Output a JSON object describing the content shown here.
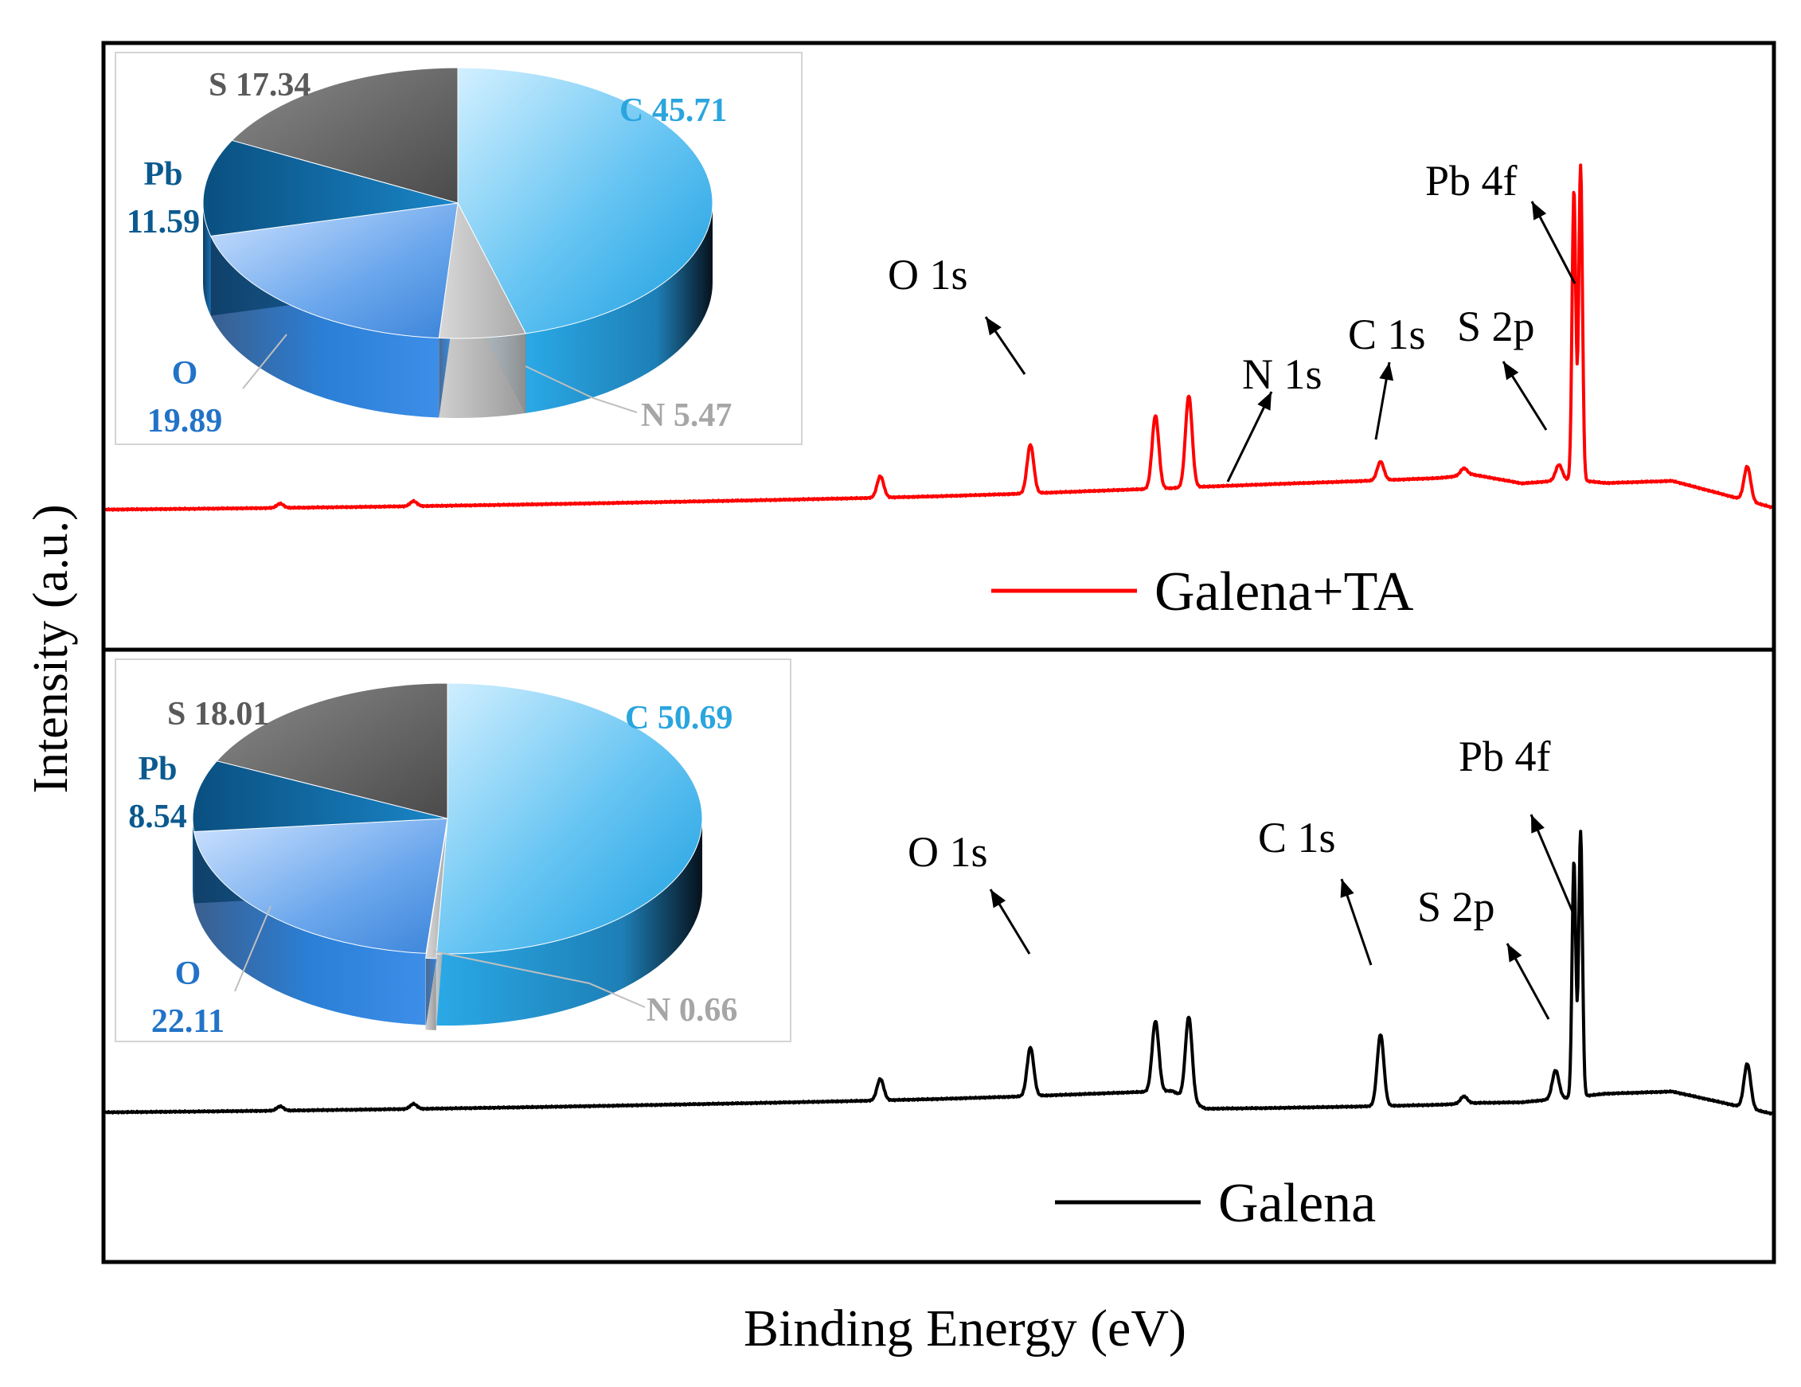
{
  "chart_data": [
    {
      "type": "line",
      "title": "",
      "xlabel": "Binding Energy (eV)",
      "ylabel": "Intensity (a.u.)",
      "x_direction": "binding energy decreasing left to right",
      "series": [
        {
          "name": "Galena+TA",
          "color": "#ff0000",
          "points": [
            [
              0,
              0.0
            ],
            [
              5,
              0.01
            ],
            [
              10,
              0.022
            ],
            [
              15,
              0.036
            ],
            [
              20,
              0.052
            ],
            [
              25,
              0.07
            ],
            [
              30,
              0.09
            ],
            [
              35,
              0.112
            ],
            [
              40,
              0.134
            ],
            [
              45,
              0.158
            ],
            [
              50,
              0.186
            ],
            [
              55,
              0.222
            ],
            [
              60,
              0.266
            ],
            [
              64,
              0.3
            ],
            [
              66,
              0.32
            ],
            [
              70,
              0.355
            ],
            [
              75,
              0.395
            ],
            [
              80,
              0.44
            ],
            [
              82,
              0.49
            ],
            [
              85,
              0.365
            ],
            [
              88,
              0.42
            ],
            [
              90,
              0.37
            ],
            [
              94,
              0.4
            ],
            [
              100,
              0.03
            ]
          ],
          "peaks": [
            {
              "x": 10.5,
              "height": 0.06
            },
            {
              "x": 18.5,
              "height": 0.07
            },
            {
              "x": 46.5,
              "height": 0.3
            },
            {
              "x": 55.5,
              "height": 0.68
            },
            {
              "x": 63.0,
              "height": 1.02
            },
            {
              "x": 65.0,
              "height": 1.28
            },
            {
              "x": 76.5,
              "height": 0.26
            },
            {
              "x": 81.5,
              "height": 0.1
            },
            {
              "x": 87.2,
              "height": 0.22
            },
            {
              "x": 88.1,
              "height": 4.05
            },
            {
              "x": 88.5,
              "height": 4.4
            },
            {
              "x": 98.5,
              "height": 0.48
            }
          ]
        }
      ],
      "annotations": [
        "O 1s",
        "N 1s",
        "C 1s",
        "S 2p",
        "Pb 4f"
      ],
      "legend": {
        "label": "Galena+TA",
        "placement": "bottom-right"
      },
      "inset_pie": {
        "slices": [
          {
            "label": "C",
            "value": 45.71,
            "color": "#2eaeea"
          },
          {
            "label": "N",
            "value": 5.47,
            "color": "#b5b5b5"
          },
          {
            "label": "O",
            "value": 19.89,
            "color": "#2b7fd6"
          },
          {
            "label": "Pb",
            "value": 11.59,
            "color": "#0b5f9a"
          },
          {
            "label": "S",
            "value": 17.34,
            "color": "#5e5e5e"
          }
        ],
        "labels": {
          "C": "C 45.71",
          "N": "N 5.47",
          "O_a": "O",
          "O_b": "19.89",
          "Pb_a": "Pb",
          "Pb_b": "11.59",
          "S": "S 17.34"
        }
      }
    },
    {
      "type": "line",
      "title": "",
      "xlabel": "Binding Energy (eV)",
      "ylabel": "Intensity (a.u.)",
      "series": [
        {
          "name": "Galena",
          "color": "#000000",
          "points": [
            [
              0,
              0.0
            ],
            [
              5,
              0.01
            ],
            [
              10,
              0.022
            ],
            [
              15,
              0.036
            ],
            [
              20,
              0.052
            ],
            [
              25,
              0.07
            ],
            [
              30,
              0.09
            ],
            [
              35,
              0.112
            ],
            [
              40,
              0.134
            ],
            [
              45,
              0.158
            ],
            [
              50,
              0.186
            ],
            [
              55,
              0.222
            ],
            [
              60,
              0.266
            ],
            [
              64,
              0.3
            ],
            [
              66,
              0.05
            ],
            [
              70,
              0.06
            ],
            [
              75,
              0.08
            ],
            [
              80,
              0.105
            ],
            [
              82,
              0.13
            ],
            [
              85,
              0.14
            ],
            [
              88,
              0.21
            ],
            [
              90,
              0.26
            ],
            [
              94,
              0.29
            ],
            [
              100,
              -0.02
            ]
          ],
          "peaks": [
            {
              "x": 10.5,
              "height": 0.06
            },
            {
              "x": 18.5,
              "height": 0.07
            },
            {
              "x": 46.5,
              "height": 0.3
            },
            {
              "x": 55.5,
              "height": 0.68
            },
            {
              "x": 63.0,
              "height": 0.98
            },
            {
              "x": 65.0,
              "height": 1.16
            },
            {
              "x": 76.5,
              "height": 1.0
            },
            {
              "x": 81.5,
              "height": 0.1
            },
            {
              "x": 87.0,
              "height": 0.4
            },
            {
              "x": 88.1,
              "height": 3.3
            },
            {
              "x": 88.5,
              "height": 3.7
            },
            {
              "x": 98.5,
              "height": 0.62
            }
          ]
        }
      ],
      "annotations": [
        "O 1s",
        "C 1s",
        "S 2p",
        "Pb 4f"
      ],
      "legend": {
        "label": "Galena",
        "placement": "bottom-right"
      },
      "inset_pie": {
        "slices": [
          {
            "label": "C",
            "value": 50.69,
            "color": "#2eaeea"
          },
          {
            "label": "N",
            "value": 0.66,
            "color": "#b5b5b5"
          },
          {
            "label": "O",
            "value": 22.11,
            "color": "#2b7fd6"
          },
          {
            "label": "Pb",
            "value": 8.54,
            "color": "#0b5f9a"
          },
          {
            "label": "S",
            "value": 18.01,
            "color": "#5e5e5e"
          }
        ],
        "labels": {
          "C": "C 50.69",
          "N": "N 0.66",
          "O_a": "O",
          "O_b": "22.11",
          "Pb_a": "Pb",
          "Pb_b": "8.54",
          "S": "S  18.01"
        }
      }
    }
  ],
  "colors": {
    "label_C": "#2aa5de",
    "label_N": "#a6a6a6",
    "label_O": "#2273c8",
    "label_Pb": "#0b5a8f",
    "label_S": "#5a5a5a"
  }
}
